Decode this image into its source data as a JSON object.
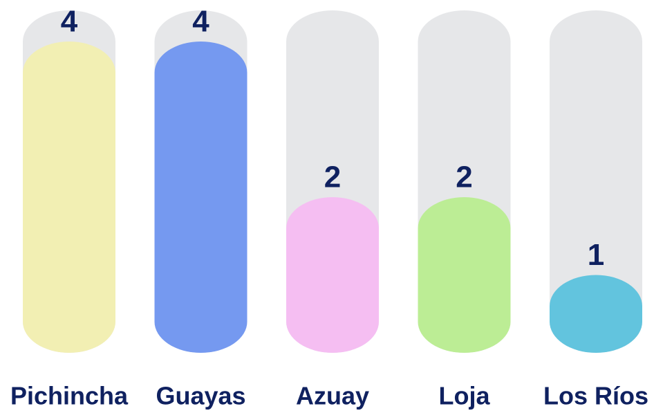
{
  "chart_data": {
    "type": "bar",
    "categories": [
      "Pichincha",
      "Guayas",
      "Azuay",
      "Loja",
      "Los Ríos"
    ],
    "values": [
      4,
      4,
      2,
      2,
      1
    ],
    "colors": [
      "#f2efb3",
      "#7599f0",
      "#f5bef2",
      "#bced95",
      "#62c4de"
    ],
    "track_color": "#e6e7e9",
    "ylim": [
      0,
      4.4
    ]
  }
}
